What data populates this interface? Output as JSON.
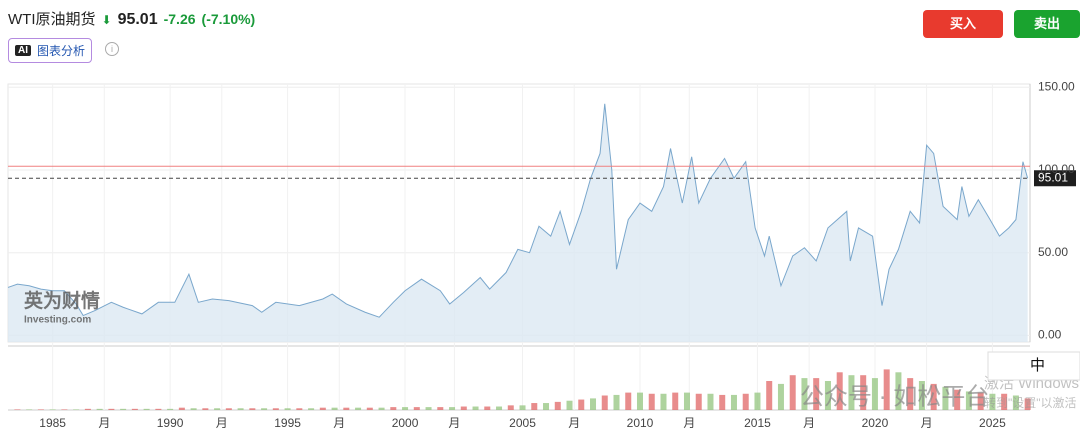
{
  "header": {
    "title": "WTI原油期货",
    "price": "95.01",
    "change": "-7.26",
    "change_pct": "(-7.10%)",
    "ai_badge": "AI",
    "ai_button": "图表分析",
    "buy": "买入",
    "sell": "卖出"
  },
  "watermarks": {
    "brand": "英为财情",
    "brand_sub": "Investing.com",
    "wechat": "公众号 · 如松平台",
    "windows": "激活 Windows",
    "windows_sub": "转到\"设置\"以激活",
    "ime": "中"
  },
  "chart_data": {
    "type": "area",
    "xlim": [
      1983.1,
      2026.6
    ],
    "xticks": [
      1985,
      {
        "value": 1987.2,
        "label": "月"
      },
      1990,
      {
        "value": 1992.2,
        "label": "月"
      },
      1995,
      {
        "value": 1997.2,
        "label": "月"
      },
      2000,
      {
        "value": 2002.1,
        "label": "月"
      },
      2005,
      {
        "value": 2007.2,
        "label": "月"
      },
      2010,
      {
        "value": 2012.1,
        "label": "月"
      },
      2015,
      {
        "value": 2017.2,
        "label": "月"
      },
      2020,
      {
        "value": 2022.2,
        "label": "月"
      },
      2025
    ],
    "ylim": [
      -4,
      152
    ],
    "yticks": [
      {
        "value": 0,
        "label": "0.00"
      },
      {
        "value": 50,
        "label": "50.00"
      },
      {
        "value": 100,
        "label": "100.00"
      },
      {
        "value": 150,
        "label": "150.00"
      }
    ],
    "grid": true,
    "previous_close": 102.27,
    "last_price": 95.01,
    "series": [
      {
        "color": "#7aa7cc",
        "x": [
          1983.1,
          1983.5,
          1984,
          1984.5,
          1985,
          1985.5,
          1986,
          1986.3,
          1986.8,
          1987.5,
          1988,
          1988.8,
          1989.5,
          1990.2,
          1990.8,
          1991.2,
          1991.8,
          1992.5,
          1993.5,
          1993.9,
          1994.5,
          1995.5,
          1996.5,
          1996.9,
          1997.5,
          1998.3,
          1998.9,
          1999.5,
          2000,
          2000.7,
          2001.5,
          2001.9,
          2002.5,
          2003.2,
          2003.6,
          2004.3,
          2004.8,
          2005.3,
          2005.7,
          2006.2,
          2006.6,
          2007.0,
          2007.5,
          2007.9,
          2008.3,
          2008.5,
          2008.8,
          2009.0,
          2009.5,
          2010,
          2010.5,
          2011.0,
          2011.3,
          2011.8,
          2012.2,
          2012.5,
          2013.0,
          2013.6,
          2014.0,
          2014.5,
          2014.9,
          2015.3,
          2015.5,
          2016.0,
          2016.5,
          2017.0,
          2017.5,
          2018.0,
          2018.8,
          2018.95,
          2019.3,
          2019.9,
          2020.3,
          2020.6,
          2021.0,
          2021.5,
          2021.9,
          2022.2,
          2022.5,
          2022.9,
          2023.5,
          2023.7,
          2024.0,
          2024.4,
          2024.9,
          2025.3,
          2025.7,
          2026.0,
          2026.3,
          2026.5
        ],
        "values": [
          29,
          31,
          30,
          28,
          27,
          27,
          19,
          12,
          15,
          20,
          17,
          13,
          20,
          20,
          37,
          20,
          22,
          21,
          18,
          14,
          20,
          18,
          22,
          25,
          19,
          14,
          11,
          20,
          27,
          34,
          27,
          19,
          26,
          35,
          28,
          38,
          52,
          50,
          66,
          60,
          75,
          55,
          75,
          95,
          110,
          140,
          100,
          40,
          70,
          80,
          75,
          90,
          113,
          80,
          108,
          80,
          95,
          107,
          95,
          105,
          65,
          48,
          60,
          30,
          48,
          53,
          45,
          65,
          75,
          45,
          65,
          60,
          18,
          40,
          52,
          75,
          68,
          115,
          110,
          78,
          70,
          90,
          72,
          82,
          70,
          60,
          65,
          70,
          105,
          95.01
        ]
      }
    ],
    "volume": {
      "ylim": [
        0,
        100
      ],
      "series": [
        {
          "color": "#e06666",
          "x": [
            1983.5,
            1984.5,
            1985.5,
            1986.5,
            1987.5,
            1988.5,
            1989.5,
            1990.5,
            1991.5,
            1992.5,
            1993.5,
            1994.5,
            1995.5,
            1996.5,
            1997.5,
            1998.5,
            1999.5,
            2000.5,
            2001.5,
            2002.5,
            2003.5,
            2004.5,
            2005.5,
            2006.5,
            2007.5,
            2008.5,
            2009.5,
            2010.5,
            2011.5,
            2012.5,
            2013.5,
            2014.5,
            2015.5,
            2016.5,
            2017.5,
            2018.5,
            2019.5,
            2020.5,
            2021.5,
            2022.5,
            2023.5,
            2024.5,
            2025.5,
            2026.5
          ],
          "values": [
            1,
            1,
            1,
            2,
            2,
            2,
            2,
            4,
            3,
            3,
            3,
            3,
            3,
            4,
            4,
            4,
            5,
            5,
            5,
            6,
            6,
            8,
            12,
            14,
            18,
            25,
            30,
            28,
            30,
            28,
            26,
            28,
            50,
            60,
            55,
            65,
            60,
            70,
            55,
            45,
            35,
            30,
            28,
            20
          ]
        },
        {
          "color": "#93c47d",
          "x": [
            1984,
            1985,
            1986,
            1987,
            1988,
            1989,
            1990,
            1991,
            1992,
            1993,
            1994,
            1995,
            1996,
            1997,
            1998,
            1999,
            2000,
            2001,
            2002,
            2003,
            2004,
            2005,
            2006,
            2007,
            2008,
            2009,
            2010,
            2011,
            2012,
            2013,
            2014,
            2015,
            2016,
            2017,
            2018,
            2019,
            2020,
            2021,
            2022,
            2023,
            2024,
            2025,
            2026
          ],
          "values": [
            1,
            1,
            1,
            2,
            2,
            2,
            2,
            3,
            3,
            3,
            3,
            3,
            3,
            4,
            4,
            4,
            5,
            5,
            5,
            6,
            6,
            8,
            12,
            16,
            20,
            26,
            30,
            28,
            30,
            28,
            26,
            30,
            45,
            55,
            50,
            60,
            55,
            65,
            50,
            40,
            32,
            28,
            25
          ]
        }
      ]
    }
  }
}
